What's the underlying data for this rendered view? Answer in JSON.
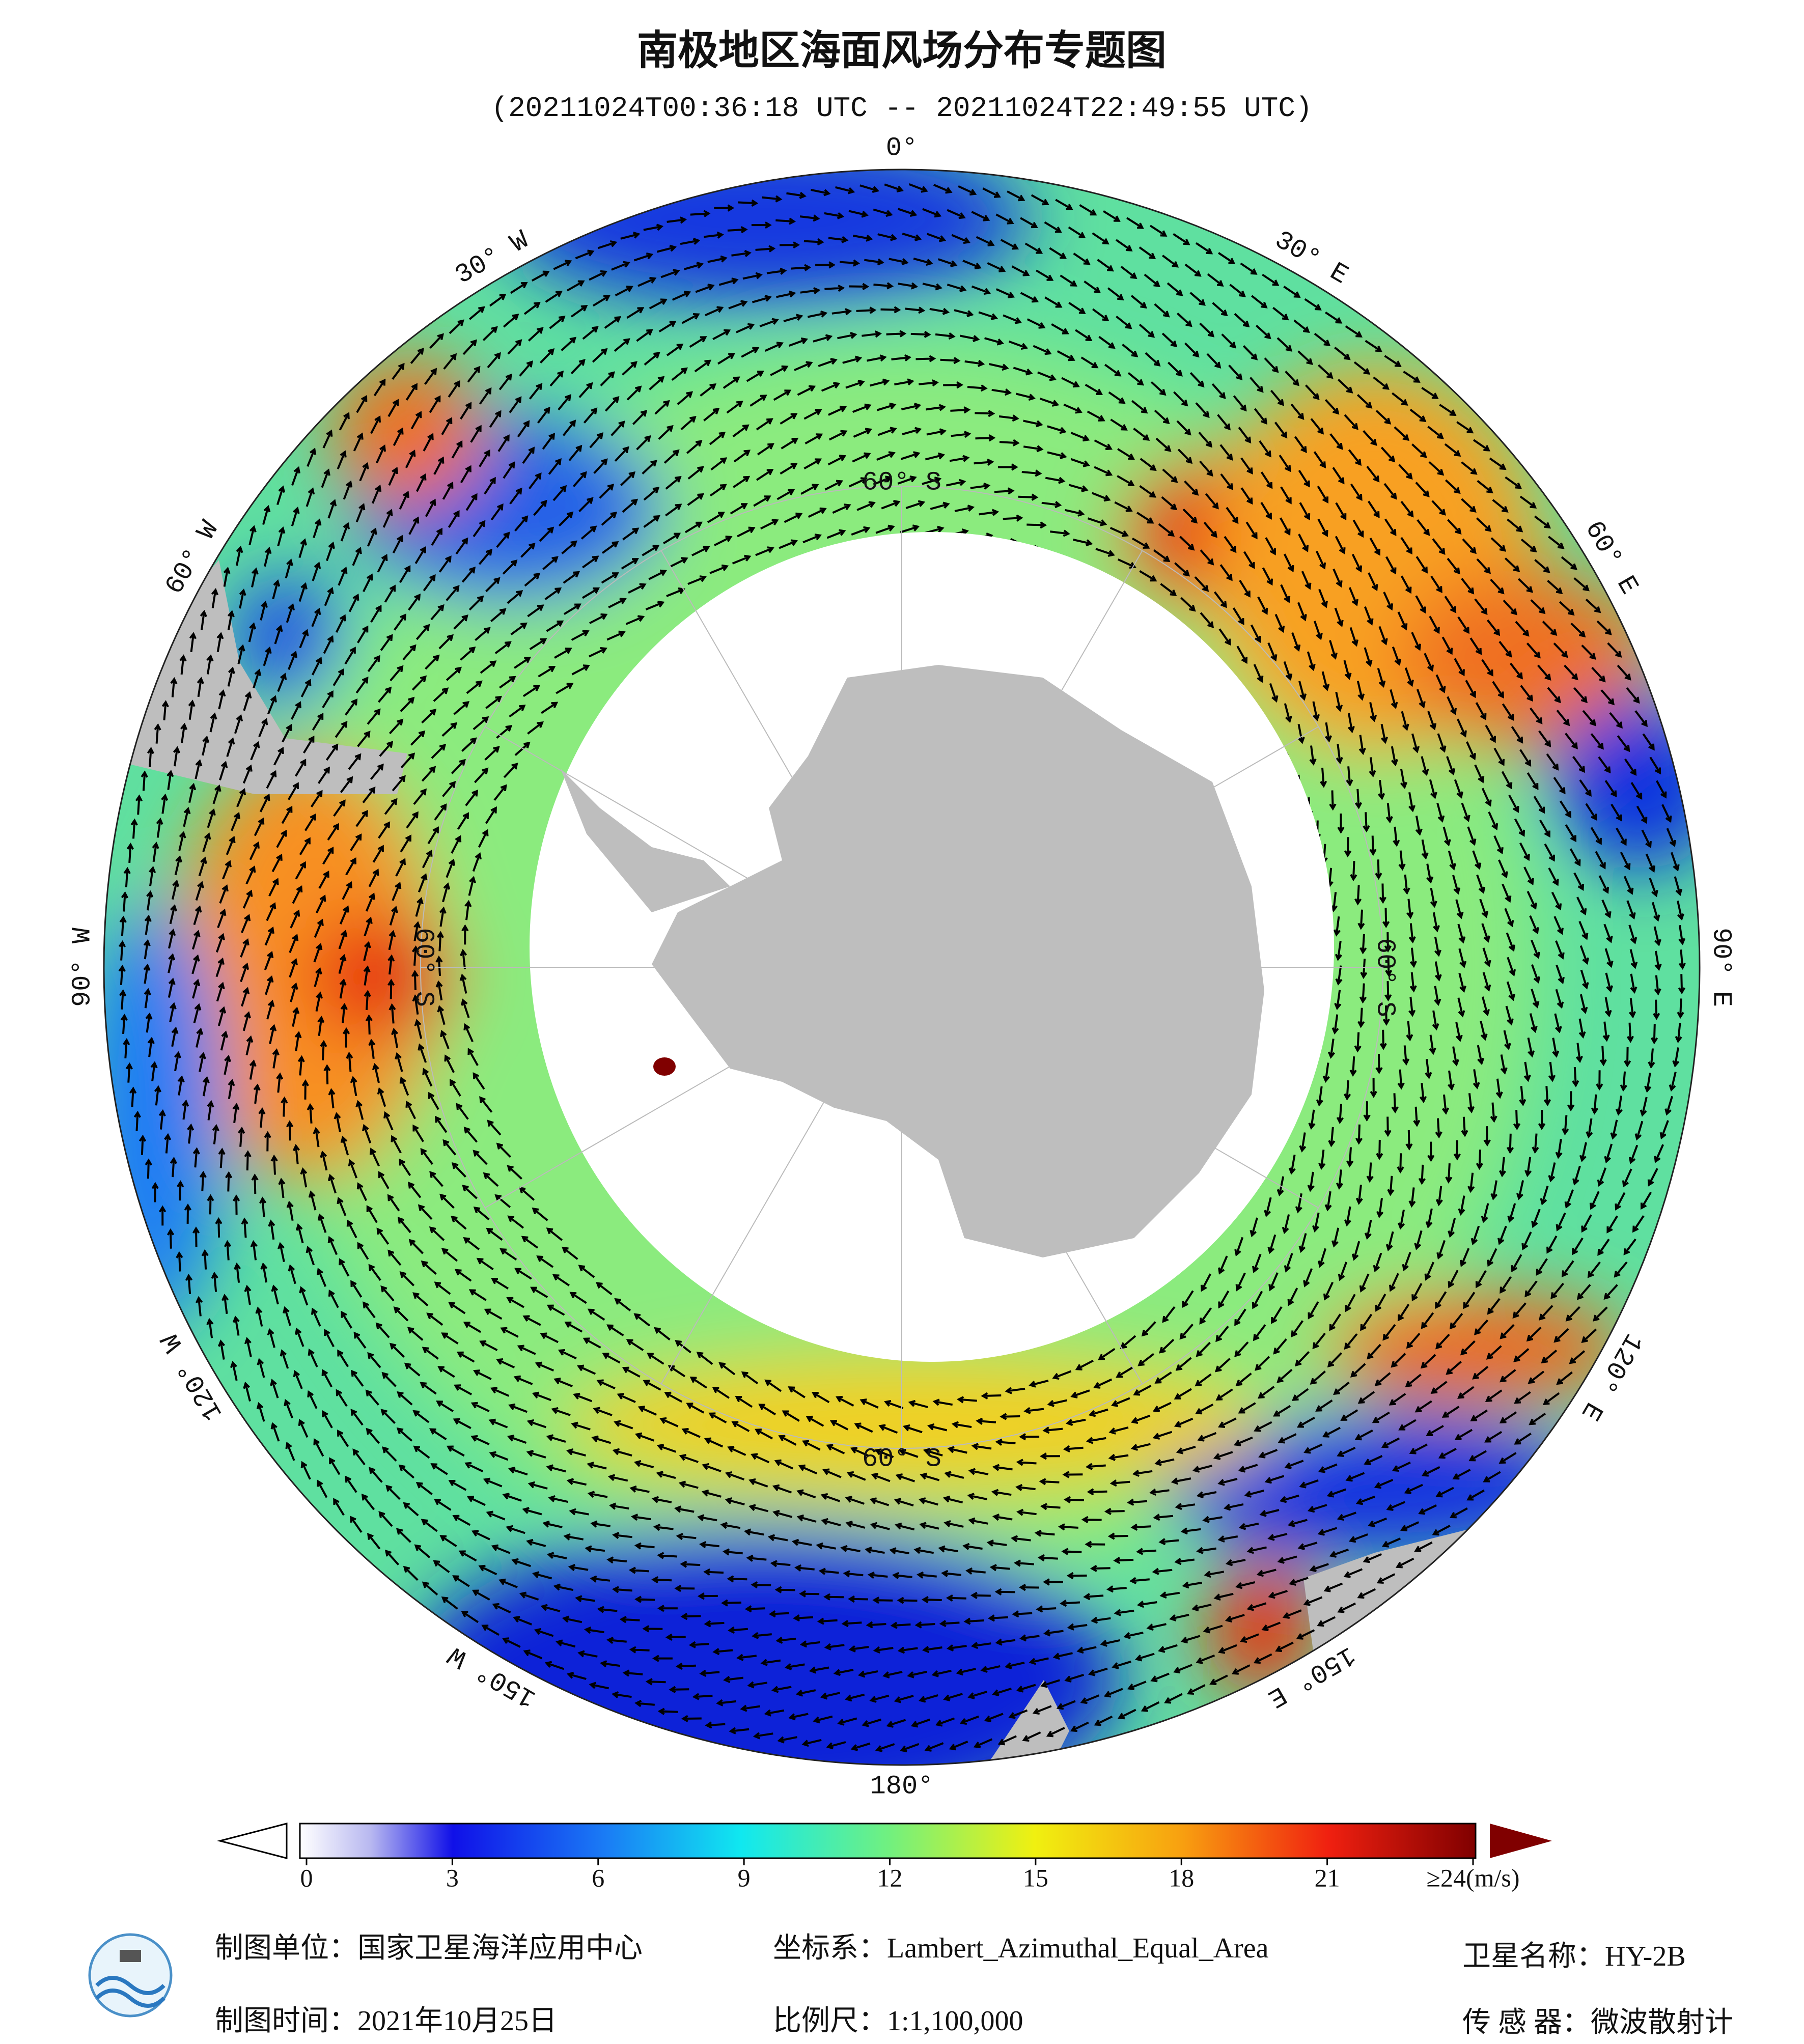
{
  "header": {
    "title": "南极地区海面风场分布专题图",
    "subtitle": "(20211024T00:36:18 UTC -- 20211024T22:49:55 UTC)"
  },
  "map": {
    "lon_labels": [
      "0°",
      "30° E",
      "60° E",
      "90° E",
      "120° E",
      "150° E",
      "180°",
      "150° W",
      "120° W",
      "90° W",
      "60° W",
      "30° W"
    ],
    "lat_labels": [
      "60° S",
      "60° S",
      "60° S",
      "60° S"
    ]
  },
  "colorbar": {
    "lim": [
      0,
      24
    ],
    "ticks": [
      0,
      3,
      6,
      9,
      12,
      15,
      18,
      21,
      {
        "value": 24,
        "label": "≥24(m/s)"
      }
    ]
  },
  "footer": {
    "unit": "制图单位：国家卫星海洋应用中心",
    "date": "制图时间：2021年10月25日",
    "crs": "坐标系：Lambert_Azimuthal_Equal_Area",
    "scale": "比例尺：1:1,100,000",
    "satellite": "卫星名称：HY-2B",
    "sensor": "传 感 器：微波散射计"
  }
}
